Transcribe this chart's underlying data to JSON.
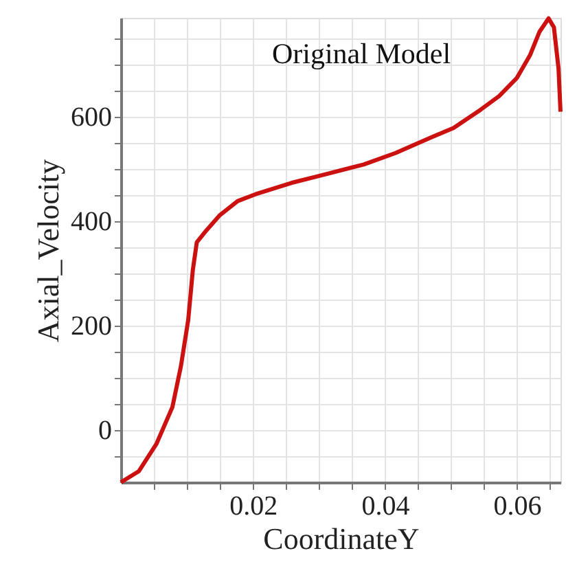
{
  "chart_data": {
    "type": "line",
    "title": "Original Model",
    "xlabel": "CoordinateY",
    "ylabel": "Axial_Velocity",
    "series": [
      {
        "color": "#cc1111",
        "x": [
          0,
          0.0027,
          0.0054,
          0.0078,
          0.0091,
          0.0102,
          0.0109,
          0.0115,
          0.0129,
          0.015,
          0.0177,
          0.0204,
          0.0259,
          0.03,
          0.0368,
          0.0416,
          0.047,
          0.0504,
          0.0545,
          0.0573,
          0.06,
          0.062,
          0.0634,
          0.0648,
          0.0656,
          0.0663,
          0.0666
        ],
        "values": [
          -100,
          -79,
          -26,
          44,
          123,
          211,
          307,
          360,
          382,
          412,
          439,
          452,
          474,
          487,
          509,
          531,
          561,
          579,
          614,
          640,
          675,
          719,
          763,
          789,
          772,
          693,
          610
        ]
      }
    ],
    "xlim": [
      0,
      0.0666
    ],
    "ylim": [
      -100,
      790
    ],
    "xticks": [
      {
        "value": 0.005,
        "label": null
      },
      {
        "value": 0.01,
        "label": null
      },
      {
        "value": 0.015,
        "label": null
      },
      0.02,
      {
        "value": 0.025,
        "label": null
      },
      {
        "value": 0.03,
        "label": null
      },
      {
        "value": 0.035,
        "label": null
      },
      0.04,
      {
        "value": 0.045,
        "label": null
      },
      {
        "value": 0.05,
        "label": null
      },
      {
        "value": 0.055,
        "label": null
      },
      0.06,
      {
        "value": 0.065,
        "label": null
      }
    ],
    "yticks": [
      {
        "value": -50,
        "label": null
      },
      0,
      {
        "value": 50,
        "label": null
      },
      {
        "value": 100,
        "label": null
      },
      {
        "value": 150,
        "label": null
      },
      200,
      {
        "value": 250,
        "label": null
      },
      {
        "value": 300,
        "label": null
      },
      {
        "value": 350,
        "label": null
      },
      400,
      {
        "value": 450,
        "label": null
      },
      {
        "value": 500,
        "label": null
      },
      {
        "value": 550,
        "label": null
      },
      600,
      {
        "value": 650,
        "label": null
      },
      {
        "value": 700,
        "label": null
      },
      {
        "value": 750,
        "label": null
      }
    ],
    "grid": true,
    "line_style": "solid",
    "marker": "none"
  }
}
